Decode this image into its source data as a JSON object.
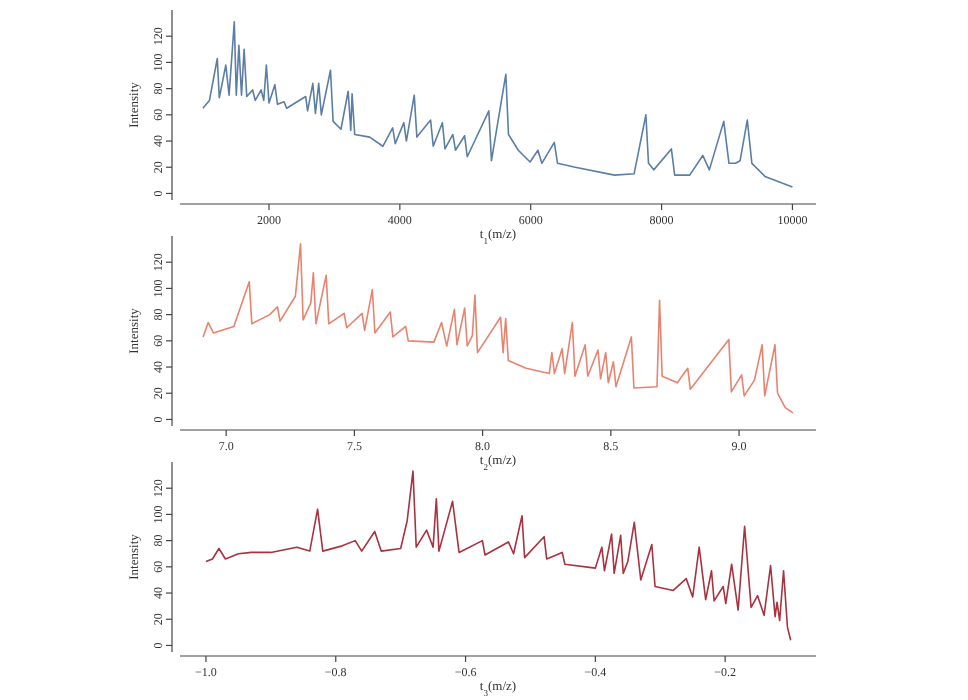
{
  "chart_data": [
    {
      "type": "line",
      "xlabel": "t$_{1}$(m/z)",
      "ylabel": "Intensity",
      "xlim": [
        640,
        10360
      ],
      "ylim": [
        -5,
        140
      ],
      "xticks": [
        2000,
        4000,
        6000,
        8000,
        10000
      ],
      "yticks": [
        0,
        20,
        40,
        60,
        80,
        100,
        120
      ],
      "series": [
        {
          "color": "#5b7ea6",
          "x": [
            990,
            1090,
            1210,
            1240,
            1340,
            1390,
            1470,
            1500,
            1540,
            1580,
            1620,
            1660,
            1750,
            1790,
            1880,
            1920,
            1960,
            2000,
            2090,
            2130,
            2230,
            2270,
            2560,
            2590,
            2670,
            2710,
            2760,
            2800,
            2940,
            2980,
            3100,
            3210,
            3250,
            3270,
            3310,
            3540,
            3740,
            3890,
            3930,
            4060,
            4100,
            4220,
            4260,
            4470,
            4510,
            4650,
            4690,
            4810,
            4850,
            4990,
            5030,
            5360,
            5400,
            5620,
            5660,
            5810,
            5990,
            6110,
            6170,
            6360,
            6410,
            6680,
            7280,
            7580,
            7760,
            7800,
            7880,
            8150,
            8200,
            8430,
            8630,
            8730,
            8950,
            9030,
            9130,
            9200,
            9310,
            9380,
            9580,
            10000
          ],
          "values": [
            65,
            71,
            103,
            73,
            98,
            75,
            131,
            75,
            113,
            75,
            110,
            74,
            79,
            71,
            79,
            71,
            98,
            69,
            83,
            68,
            70,
            65,
            74,
            63,
            84,
            61,
            84,
            60,
            94,
            55,
            49,
            78,
            48,
            76,
            45,
            43,
            36,
            50,
            38,
            54,
            40,
            75,
            43,
            56,
            36,
            54,
            34,
            45,
            33,
            44,
            28,
            63,
            25,
            91,
            45,
            33,
            24,
            33,
            23,
            39,
            23,
            20,
            14,
            15,
            60,
            23,
            18,
            34,
            14,
            14,
            29,
            18,
            55,
            23,
            23,
            25,
            56,
            23,
            13,
            5
          ]
        }
      ]
    },
    {
      "type": "line",
      "xlabel": "t$_{2}$(m/z)",
      "ylabel": "Intensity",
      "xlim": [
        6.82,
        9.3
      ],
      "ylim": [
        -5,
        140
      ],
      "xticks": [
        {
          "value": 7,
          "label": "7.0"
        },
        7.5,
        {
          "value": 8,
          "label": "8.0"
        },
        8.5,
        {
          "value": 9,
          "label": "9.0"
        }
      ],
      "yticks": [
        0,
        20,
        40,
        60,
        80,
        100,
        120
      ],
      "series": [
        {
          "color": "#e8836f",
          "x": [
            6.91,
            6.93,
            6.95,
            7.03,
            7.09,
            7.1,
            7.17,
            7.2,
            7.21,
            7.27,
            7.29,
            7.3,
            7.33,
            7.34,
            7.35,
            7.39,
            7.4,
            7.46,
            7.47,
            7.53,
            7.54,
            7.57,
            7.58,
            7.64,
            7.65,
            7.7,
            7.71,
            7.81,
            7.84,
            7.86,
            7.89,
            7.9,
            7.93,
            7.94,
            7.96,
            7.97,
            7.98,
            8.07,
            8.08,
            8.09,
            8.1,
            8.17,
            8.26,
            8.27,
            8.28,
            8.31,
            8.32,
            8.35,
            8.36,
            8.4,
            8.41,
            8.45,
            8.46,
            8.48,
            8.49,
            8.51,
            8.52,
            8.58,
            8.59,
            8.68,
            8.69,
            8.7,
            8.76,
            8.77,
            8.8,
            8.81,
            8.96,
            8.97,
            9.01,
            9.02,
            9.06,
            9.09,
            9.1,
            9.14,
            9.15,
            9.18,
            9.21
          ],
          "values": [
            63,
            74,
            66,
            71,
            105,
            73,
            80,
            86,
            75,
            94,
            134,
            76,
            89,
            112,
            73,
            110,
            73,
            81,
            70,
            81,
            68,
            99,
            66,
            82,
            63,
            71,
            60,
            59,
            74,
            56,
            84,
            57,
            85,
            56,
            64,
            95,
            51,
            78,
            51,
            77,
            45,
            39,
            35,
            51,
            35,
            54,
            35,
            74,
            33,
            57,
            33,
            53,
            31,
            51,
            28,
            44,
            25,
            63,
            24,
            25,
            91,
            33,
            28,
            31,
            39,
            23,
            61,
            21,
            34,
            18,
            30,
            57,
            18,
            57,
            20,
            9,
            5
          ]
        }
      ]
    },
    {
      "type": "line",
      "xlabel": "t$_{3}$(m/z)",
      "ylabel": "Intensity",
      "xlim": [
        -1.04,
        -0.06
      ],
      "ylim": [
        -5,
        140
      ],
      "xticks": [
        {
          "value": -1,
          "label": "−1.0"
        },
        {
          "value": -0.8,
          "label": "−0.8"
        },
        {
          "value": -0.6,
          "label": "−0.6"
        },
        {
          "value": -0.4,
          "label": "−0.4"
        },
        {
          "value": -0.2,
          "label": "−0.2"
        }
      ],
      "yticks": [
        0,
        20,
        40,
        60,
        80,
        100,
        120
      ],
      "series": [
        {
          "color": "#a8323f",
          "x": [
            -1.0,
            -0.99,
            -0.98,
            -0.97,
            -0.95,
            -0.93,
            -0.9,
            -0.86,
            -0.84,
            -0.828,
            -0.82,
            -0.79,
            -0.77,
            -0.76,
            -0.74,
            -0.73,
            -0.7,
            -0.69,
            -0.681,
            -0.676,
            -0.66,
            -0.65,
            -0.645,
            -0.641,
            -0.62,
            -0.61,
            -0.574,
            -0.57,
            -0.534,
            -0.526,
            -0.513,
            -0.509,
            -0.479,
            -0.475,
            -0.451,
            -0.447,
            -0.4,
            -0.39,
            -0.386,
            -0.375,
            -0.371,
            -0.361,
            -0.357,
            -0.35,
            -0.34,
            -0.33,
            -0.313,
            -0.308,
            -0.28,
            -0.26,
            -0.25,
            -0.24,
            -0.23,
            -0.221,
            -0.217,
            -0.203,
            -0.199,
            -0.19,
            -0.18,
            -0.17,
            -0.16,
            -0.15,
            -0.14,
            -0.13,
            -0.123,
            -0.12,
            -0.116,
            -0.11,
            -0.104,
            -0.099
          ],
          "values": [
            64,
            66,
            74,
            66,
            70,
            71,
            71,
            75,
            72,
            104,
            72,
            76,
            80,
            72,
            87,
            72,
            74,
            95,
            133,
            75,
            88,
            75,
            112,
            72,
            110,
            71,
            80,
            69,
            79,
            70,
            99,
            67,
            83,
            66,
            71,
            62,
            59,
            75,
            57,
            85,
            55,
            84,
            55,
            64,
            94,
            50,
            77,
            45,
            42,
            51,
            37,
            75,
            35,
            57,
            34,
            45,
            32,
            62,
            27,
            91,
            29,
            38,
            23,
            61,
            22,
            33,
            19,
            57,
            14,
            4
          ]
        }
      ]
    }
  ]
}
